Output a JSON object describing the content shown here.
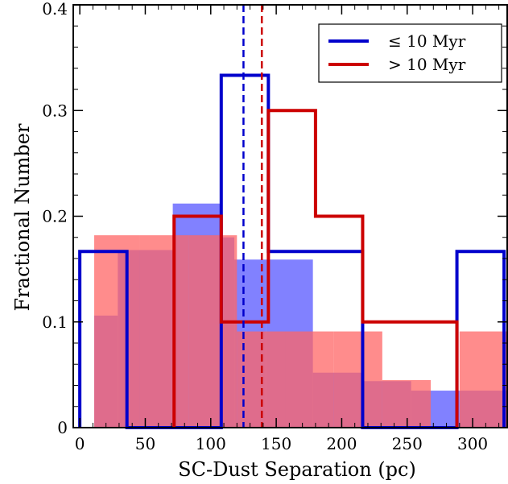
{
  "chart_data": {
    "type": "histogram",
    "xlabel": "SC-Dust Separation (pc)",
    "ylabel": "Fractional Number",
    "xlim": [
      -5,
      327
    ],
    "ylim": [
      0,
      0.4
    ],
    "xticks": [
      0,
      50,
      100,
      150,
      200,
      250,
      300
    ],
    "yticks": [
      0,
      0.1,
      0.2,
      0.3,
      0.4
    ],
    "ytick_labels": [
      "0",
      "0.1",
      "0.2",
      "0.3",
      "0.4"
    ],
    "legend_position": "top-right",
    "filled_series": [
      {
        "color": "#6b6bff",
        "opacity": 0.85,
        "bins": [
          {
            "x0": 11,
            "x1": 29,
            "y": 0.106
          },
          {
            "x0": 29,
            "x1": 71,
            "y": 0.168
          },
          {
            "x0": 71,
            "x1": 107,
            "y": 0.212
          },
          {
            "x0": 107,
            "x1": 118,
            "y": 0.18
          },
          {
            "x0": 118,
            "x1": 142,
            "y": 0.159
          },
          {
            "x0": 142,
            "x1": 178,
            "y": 0.159
          },
          {
            "x0": 178,
            "x1": 215,
            "y": 0.052
          },
          {
            "x0": 215,
            "x1": 253,
            "y": 0.044
          },
          {
            "x0": 253,
            "x1": 290,
            "y": 0.035
          },
          {
            "x0": 290,
            "x1": 327,
            "y": 0.035
          }
        ]
      },
      {
        "color": "#ff6666",
        "opacity": 0.75,
        "bins": [
          {
            "x0": 11,
            "x1": 46,
            "y": 0.182
          },
          {
            "x0": 46,
            "x1": 83,
            "y": 0.182
          },
          {
            "x0": 83,
            "x1": 120,
            "y": 0.182
          },
          {
            "x0": 120,
            "x1": 157,
            "y": 0.091
          },
          {
            "x0": 157,
            "x1": 194,
            "y": 0.091
          },
          {
            "x0": 194,
            "x1": 231,
            "y": 0.091
          },
          {
            "x0": 231,
            "x1": 268,
            "y": 0.045
          },
          {
            "x0": 268,
            "x1": 290,
            "y": 0.0
          },
          {
            "x0": 290,
            "x1": 327,
            "y": 0.091
          }
        ]
      }
    ],
    "series": [
      {
        "name": "≤ 10 Myr",
        "color": "#0000cc",
        "bins": [
          {
            "x0": 0,
            "x1": 36,
            "y": 0.1667
          },
          {
            "x0": 36,
            "x1": 108,
            "y": 0.0
          },
          {
            "x0": 108,
            "x1": 144,
            "y": 0.3333
          },
          {
            "x0": 144,
            "x1": 216,
            "y": 0.1667
          },
          {
            "x0": 216,
            "x1": 288,
            "y": 0.0
          },
          {
            "x0": 288,
            "x1": 324,
            "y": 0.1667
          }
        ],
        "median": 125
      },
      {
        "name": "> 10 Myr",
        "color": "#cc0000",
        "bins": [
          {
            "x0": 72,
            "x1": 108,
            "y": 0.2
          },
          {
            "x0": 108,
            "x1": 144,
            "y": 0.1
          },
          {
            "x0": 144,
            "x1": 180,
            "y": 0.3
          },
          {
            "x0": 180,
            "x1": 216,
            "y": 0.2
          },
          {
            "x0": 216,
            "x1": 288,
            "y": 0.1
          }
        ],
        "median": 139
      }
    ]
  }
}
